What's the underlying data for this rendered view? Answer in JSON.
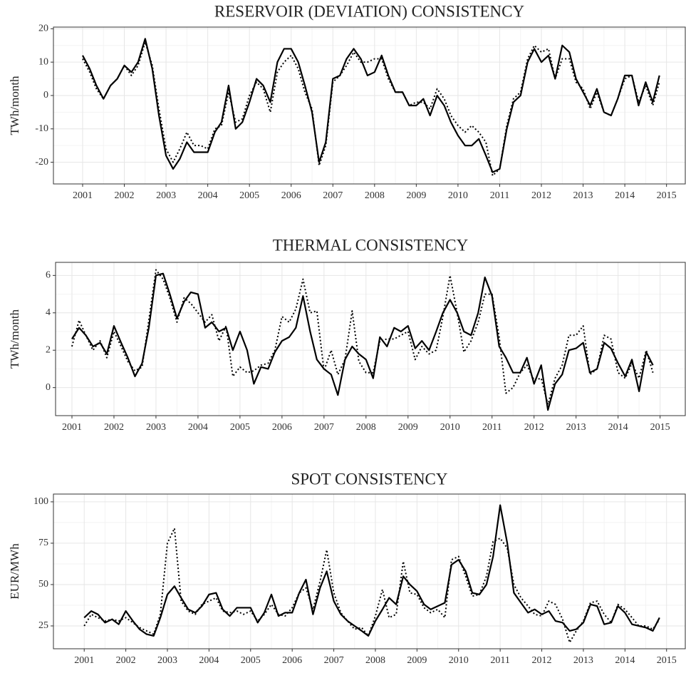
{
  "chart_data": [
    {
      "type": "line",
      "title": "RESERVOIR (DEVIATION) CONSISTENCY",
      "y_label": "TWh/month",
      "x": [
        2001,
        2001.17,
        2001.33,
        2001.5,
        2001.67,
        2001.83,
        2002,
        2002.17,
        2002.33,
        2002.5,
        2002.67,
        2002.83,
        2003,
        2003.17,
        2003.33,
        2003.5,
        2003.67,
        2003.83,
        2004,
        2004.17,
        2004.33,
        2004.5,
        2004.67,
        2004.83,
        2005,
        2005.17,
        2005.33,
        2005.5,
        2005.67,
        2005.83,
        2006,
        2006.17,
        2006.33,
        2006.5,
        2006.67,
        2006.83,
        2007,
        2007.17,
        2007.33,
        2007.5,
        2007.67,
        2007.83,
        2008,
        2008.17,
        2008.33,
        2008.5,
        2008.67,
        2008.83,
        2009,
        2009.17,
        2009.33,
        2009.5,
        2009.67,
        2009.83,
        2010,
        2010.17,
        2010.33,
        2010.5,
        2010.67,
        2010.83,
        2011,
        2011.17,
        2011.33,
        2011.5,
        2011.67,
        2011.83,
        2012,
        2012.17,
        2012.33,
        2012.5,
        2012.67,
        2012.83,
        2013,
        2013.17,
        2013.33,
        2013.5,
        2013.67,
        2013.83,
        2014,
        2014.17,
        2014.33,
        2014.5,
        2014.67,
        2014.83
      ],
      "series": [
        {
          "color": "#000000",
          "style": "solid",
          "values": [
            12,
            8,
            3,
            -1,
            3,
            5,
            9,
            7,
            10,
            17,
            8,
            -6,
            -18,
            -22,
            -19,
            -14,
            -17,
            -17,
            -17,
            -11,
            -8,
            3,
            -10,
            -8,
            -2,
            5,
            3,
            -2,
            10,
            14,
            14,
            10,
            3,
            -5,
            -20,
            -14,
            5,
            6,
            11,
            14,
            11,
            6,
            7,
            12,
            6,
            1,
            1,
            -3,
            -3,
            -1,
            -6,
            0,
            -3,
            -8,
            -12,
            -15,
            -15,
            -13,
            -18,
            -23,
            -22,
            -10,
            -2,
            0,
            10,
            14,
            10,
            12,
            5,
            15,
            13,
            5,
            1,
            -3,
            2,
            -5,
            -6,
            -1,
            6,
            6,
            -3,
            4,
            -2,
            6
          ]
        },
        {
          "color": "#000000",
          "style": "dotted",
          "values": [
            11,
            7,
            2,
            -1,
            3,
            5,
            9,
            6,
            9,
            16,
            9,
            -4,
            -16,
            -20,
            -16,
            -11,
            -15,
            -15,
            -16,
            -10,
            -9,
            1,
            -8,
            -7,
            0,
            4,
            2,
            -5,
            7,
            10,
            12,
            8,
            1,
            -4,
            -21,
            -15,
            4,
            6,
            9,
            13,
            10,
            10,
            11,
            11,
            5,
            1,
            1,
            -3,
            -2,
            -2,
            -4,
            2,
            -1,
            -6,
            -9,
            -11,
            -9,
            -11,
            -14,
            -24,
            -22,
            -9,
            -1,
            1,
            11,
            15,
            13,
            14,
            5,
            11,
            11,
            4,
            2,
            -4,
            1,
            -5,
            -6,
            -1,
            5,
            6,
            -2,
            3,
            -3,
            4
          ]
        }
      ],
      "xlim": [
        2000.3,
        2015.45
      ],
      "xticks": [
        2001,
        2002,
        2003,
        2004,
        2005,
        2006,
        2007,
        2008,
        2009,
        2010,
        2011,
        2012,
        2013,
        2014,
        2015
      ],
      "ylim": [
        -26.5,
        20.5
      ],
      "yticks": [
        -20,
        -10,
        0,
        10,
        20
      ],
      "grid": true
    },
    {
      "type": "line",
      "title": "THERMAL CONSISTENCY",
      "y_label": "TWh/month",
      "x": [
        2001,
        2001.17,
        2001.33,
        2001.5,
        2001.67,
        2001.83,
        2002,
        2002.17,
        2002.33,
        2002.5,
        2002.67,
        2002.83,
        2003,
        2003.17,
        2003.33,
        2003.5,
        2003.67,
        2003.83,
        2004,
        2004.17,
        2004.33,
        2004.5,
        2004.67,
        2004.83,
        2005,
        2005.17,
        2005.33,
        2005.5,
        2005.67,
        2005.83,
        2006,
        2006.17,
        2006.33,
        2006.5,
        2006.67,
        2006.83,
        2007,
        2007.17,
        2007.33,
        2007.5,
        2007.67,
        2007.83,
        2008,
        2008.17,
        2008.33,
        2008.5,
        2008.67,
        2008.83,
        2009,
        2009.17,
        2009.33,
        2009.5,
        2009.67,
        2009.83,
        2010,
        2010.17,
        2010.33,
        2010.5,
        2010.67,
        2010.83,
        2011,
        2011.17,
        2011.33,
        2011.5,
        2011.67,
        2011.83,
        2012,
        2012.17,
        2012.33,
        2012.5,
        2012.67,
        2012.83,
        2013,
        2013.17,
        2013.33,
        2013.5,
        2013.67,
        2013.83,
        2014,
        2014.17,
        2014.33,
        2014.5,
        2014.67,
        2014.83
      ],
      "series": [
        {
          "color": "#000000",
          "style": "solid",
          "values": [
            2.6,
            3.2,
            2.8,
            2.2,
            2.4,
            1.8,
            3.3,
            2.4,
            1.6,
            0.6,
            1.3,
            3.2,
            6.0,
            6.1,
            5.0,
            3.7,
            4.6,
            5.1,
            5.0,
            3.2,
            3.5,
            3.0,
            3.2,
            2.0,
            3.0,
            2.0,
            0.2,
            1.1,
            1.0,
            1.9,
            2.5,
            2.7,
            3.2,
            4.9,
            3.0,
            1.5,
            1.0,
            0.7,
            -0.4,
            1.5,
            2.2,
            1.8,
            1.5,
            0.5,
            2.7,
            2.2,
            3.2,
            3.0,
            3.3,
            2.1,
            2.5,
            2.0,
            3.0,
            4.0,
            4.7,
            4.0,
            3.0,
            2.8,
            4.0,
            5.9,
            4.9,
            2.2,
            1.6,
            0.8,
            0.8,
            1.6,
            0.2,
            1.2,
            -1.2,
            0.2,
            0.7,
            2.0,
            2.1,
            2.4,
            0.8,
            1.0,
            2.4,
            2.1,
            1.3,
            0.6,
            1.5,
            -0.2,
            1.9,
            1.2
          ]
        },
        {
          "color": "#000000",
          "style": "dotted",
          "values": [
            2.2,
            3.6,
            2.8,
            2.0,
            2.5,
            1.6,
            3.0,
            2.2,
            1.4,
            0.9,
            1.1,
            3.6,
            6.3,
            5.8,
            4.8,
            3.5,
            4.8,
            4.5,
            4.0,
            3.5,
            3.9,
            2.5,
            3.3,
            0.6,
            1.1,
            0.8,
            0.9,
            1.2,
            1.3,
            2.0,
            3.8,
            3.5,
            4.2,
            5.8,
            4.0,
            4.1,
            0.9,
            2.0,
            0.7,
            1.5,
            4.1,
            1.4,
            0.8,
            0.8,
            2.5,
            2.6,
            2.6,
            2.8,
            3.0,
            1.5,
            2.2,
            1.8,
            2.0,
            3.8,
            6.0,
            4.0,
            1.9,
            2.5,
            3.5,
            5.0,
            5.0,
            2.7,
            -0.3,
            0.0,
            0.8,
            1.2,
            0.4,
            0.5,
            -0.9,
            0.5,
            1.2,
            2.8,
            2.8,
            3.3,
            0.7,
            1.0,
            2.8,
            2.6,
            0.8,
            0.5,
            1.3,
            0.5,
            2.0,
            0.8
          ]
        }
      ],
      "xlim": [
        2000.61,
        2015.6
      ],
      "xticks": [
        2001,
        2002,
        2003,
        2004,
        2005,
        2006,
        2007,
        2008,
        2009,
        2010,
        2011,
        2012,
        2013,
        2014,
        2015
      ],
      "ylim": [
        -1.5,
        6.7
      ],
      "yticks": [
        0,
        2,
        4,
        6
      ],
      "grid": true
    },
    {
      "type": "line",
      "title": "SPOT CONSISTENCY",
      "y_label": "EUR/MWh",
      "x": [
        2001,
        2001.17,
        2001.33,
        2001.5,
        2001.67,
        2001.83,
        2002,
        2002.17,
        2002.33,
        2002.5,
        2002.67,
        2002.83,
        2003,
        2003.17,
        2003.33,
        2003.5,
        2003.67,
        2003.83,
        2004,
        2004.17,
        2004.33,
        2004.5,
        2004.67,
        2004.83,
        2005,
        2005.17,
        2005.33,
        2005.5,
        2005.67,
        2005.83,
        2006,
        2006.17,
        2006.33,
        2006.5,
        2006.67,
        2006.83,
        2007,
        2007.17,
        2007.33,
        2007.5,
        2007.67,
        2007.83,
        2008,
        2008.17,
        2008.33,
        2008.5,
        2008.67,
        2008.83,
        2009,
        2009.17,
        2009.33,
        2009.5,
        2009.67,
        2009.83,
        2010,
        2010.17,
        2010.33,
        2010.5,
        2010.67,
        2010.83,
        2011,
        2011.17,
        2011.33,
        2011.5,
        2011.67,
        2011.83,
        2012,
        2012.17,
        2012.33,
        2012.5,
        2012.67,
        2012.83,
        2013,
        2013.17,
        2013.33,
        2013.5,
        2013.67,
        2013.83,
        2014,
        2014.17,
        2014.33,
        2014.5,
        2014.67,
        2014.83
      ],
      "series": [
        {
          "color": "#000000",
          "style": "solid",
          "values": [
            30,
            34,
            32,
            27,
            29,
            26,
            34,
            28,
            23,
            20,
            19,
            30,
            44,
            49,
            42,
            35,
            33,
            37,
            44,
            45,
            35,
            31,
            36,
            36,
            36,
            27,
            33,
            44,
            31,
            33,
            33,
            45,
            53,
            32,
            48,
            58,
            40,
            32,
            28,
            25,
            22,
            19,
            28,
            35,
            42,
            38,
            55,
            50,
            46,
            38,
            35,
            37,
            39,
            62,
            65,
            58,
            45,
            44,
            50,
            67,
            98,
            75,
            45,
            39,
            33,
            35,
            32,
            34,
            28,
            27,
            22,
            23,
            27,
            38,
            37,
            26,
            27,
            37,
            33,
            26,
            25,
            24,
            22,
            30
          ]
        },
        {
          "color": "#000000",
          "style": "dotted",
          "values": [
            25,
            32,
            30,
            28,
            29,
            28,
            30,
            27,
            24,
            22,
            20,
            32,
            75,
            84,
            40,
            34,
            32,
            38,
            40,
            42,
            34,
            33,
            34,
            32,
            34,
            28,
            32,
            38,
            32,
            31,
            36,
            45,
            48,
            35,
            52,
            71,
            45,
            33,
            28,
            23,
            24,
            19,
            31,
            47,
            30,
            32,
            64,
            45,
            44,
            36,
            33,
            35,
            30,
            65,
            67,
            55,
            43,
            44,
            55,
            76,
            78,
            72,
            50,
            42,
            37,
            32,
            31,
            40,
            38,
            29,
            15,
            22,
            28,
            39,
            40,
            32,
            27,
            38,
            35,
            30,
            25,
            25,
            23,
            29
          ]
        }
      ],
      "xlim": [
        2000.26,
        2015.45
      ],
      "xticks": [
        2001,
        2002,
        2003,
        2004,
        2005,
        2006,
        2007,
        2008,
        2009,
        2010,
        2011,
        2012,
        2013,
        2014,
        2015
      ],
      "ylim": [
        11.2,
        104.7
      ],
      "yticks": [
        25,
        50,
        75,
        100
      ],
      "grid": true
    }
  ]
}
